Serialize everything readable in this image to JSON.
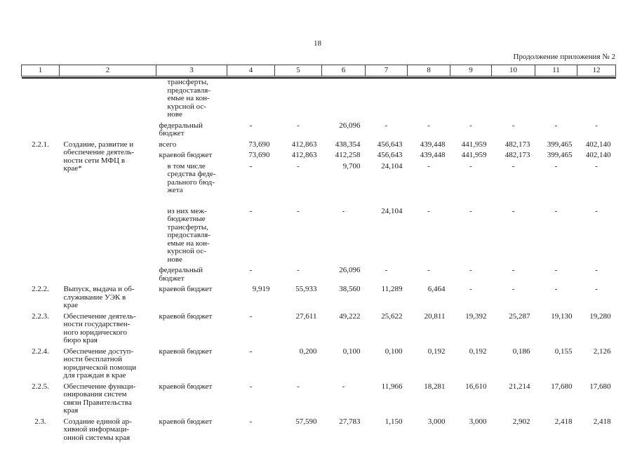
{
  "page": {
    "number": "18",
    "continuation_note": "Продолжение приложения № 2"
  },
  "table": {
    "header_columns": [
      "1",
      "2",
      "3",
      "4",
      "5",
      "6",
      "7",
      "8",
      "9",
      "10",
      "11",
      "12"
    ],
    "rows": [
      {
        "num": "",
        "activity": "",
        "span": 2,
        "budget": "трансферты,\nпредоставля-\nемые на кон-\nкурсной ос-\nнове",
        "indent": true,
        "values": [
          "",
          "",
          "",
          "",
          "",
          "",
          "",
          "",
          ""
        ]
      },
      {
        "budget": "федеральный\nбюджет",
        "values": [
          "-",
          "-",
          "26,096",
          "-",
          "-",
          "-",
          "-",
          "-",
          "-"
        ]
      },
      {
        "num": "2.2.1.",
        "activity": "Создание, развитие и\nобеспечение деятель-\nности сети МФЦ в\nкрае*",
        "span": 5,
        "budget": "всего",
        "values": [
          "73,690",
          "412,863",
          "438,354",
          "456,643",
          "439,448",
          "441,959",
          "482,173",
          "399,465",
          "402,140"
        ]
      },
      {
        "budget": "краевой бюджет",
        "values": [
          "73,690",
          "412,863",
          "412,258",
          "456,643",
          "439,448",
          "441,959",
          "482,173",
          "399,465",
          "402,140"
        ]
      },
      {
        "budget": "в том числе\nсредства феде-\nрального бюд-\nжета",
        "indent": true,
        "values": [
          "-",
          "-",
          "9,700",
          "24,104",
          "-",
          "-",
          "-",
          "-",
          "-"
        ]
      },
      {
        "budget": "из них меж-\nбюджетные\nтрансферты,\nпредоставля-\nемые на кон-\nкурсной ос-\nнове",
        "indent": true,
        "gap": true,
        "values": [
          "-",
          "-",
          "-",
          "24,104",
          "-",
          "-",
          "-",
          "-",
          "-"
        ]
      },
      {
        "budget": "федеральный\nбюджет",
        "values": [
          "-",
          "-",
          "26,096",
          "-",
          "-",
          "-",
          "-",
          "-",
          "-"
        ]
      },
      {
        "num": "2.2.2.",
        "activity": "Выпуск, выдача и об-\nслуживание УЭК в\nкрае",
        "span": 1,
        "budget": "краевой бюджет",
        "values": [
          "9,919",
          "55,933",
          "38,560",
          "11,289",
          "6,464",
          "-",
          "-",
          "-",
          "-"
        ]
      },
      {
        "num": "2.2.3.",
        "activity": "Обеспечение деятель-\nности государствен-\nного юридического\nбюро края",
        "span": 1,
        "budget": "краевой бюджет",
        "values": [
          "-",
          "27,611",
          "49,222",
          "25,622",
          "20,811",
          "19,392",
          "25,287",
          "19,130",
          "19,280"
        ]
      },
      {
        "num": "2.2.4.",
        "activity": "Обеспечение доступ-\nности бесплатной\nюридической помощи\nдля граждан в крае",
        "span": 1,
        "budget": "краевой бюджет",
        "values": [
          "-",
          "0,200",
          "0,100",
          "0,100",
          "0,192",
          "0,192",
          "0,186",
          "0,155",
          "2,126"
        ]
      },
      {
        "num": "2.2.5.",
        "activity": "Обеспечение функци-\nонирования систем\nсвязи Правительства\nкрая",
        "span": 1,
        "budget": "краевой бюджет",
        "values": [
          "-",
          "-",
          "-",
          "11,966",
          "18,281",
          "16,610",
          "21,214",
          "17,680",
          "17,680"
        ]
      },
      {
        "num": "2.3.",
        "activity": "Создание единой ар-\nхивной информаци-\nонной системы края",
        "span": 1,
        "budget": "краевой бюджет",
        "values": [
          "-",
          "57,590",
          "27,783",
          "1,150",
          "3,000",
          "3,000",
          "2,902",
          "2,418",
          "2,418"
        ]
      }
    ]
  }
}
